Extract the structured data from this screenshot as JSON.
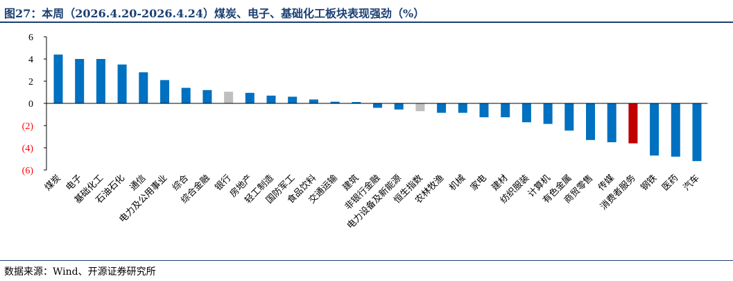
{
  "header": {
    "title": "图27：本周（2026.4.20-2026.4.24）煤炭、电子、基础化工板块表现强劲（%）"
  },
  "footer": {
    "source": "数据来源：Wind、开源证券研究所"
  },
  "colors": {
    "default_bar": "#0070C0",
    "index_bar": "#BFBFBF",
    "highlight_bar": "#C00000",
    "negative_tick": "#FF0000",
    "title": "#1B3F73"
  },
  "chart_data": {
    "type": "bar",
    "title": "",
    "xlabel": "",
    "ylabel": "",
    "ylim": [
      -6,
      6
    ],
    "yticks": [
      6,
      4,
      2,
      0,
      -2,
      -4,
      -6
    ],
    "ytick_labels": [
      "6",
      "4",
      "2",
      "0",
      "(2)",
      "(4)",
      "(6)"
    ],
    "grid": false,
    "categories": [
      "煤炭",
      "电子",
      "基础化工",
      "石油石化",
      "通信",
      "电力及公用事业",
      "综合",
      "综合金融",
      "银行",
      "房地产",
      "轻工制造",
      "国防军工",
      "食品饮料",
      "交通运输",
      "建筑",
      "非银行金融",
      "电力设备及新能源",
      "恒生指数",
      "农林牧渔",
      "机械",
      "家电",
      "建材",
      "纺织服装",
      "计算机",
      "有色金属",
      "商贸零售",
      "传媒",
      "消费者服务",
      "钢铁",
      "医药",
      "汽车"
    ],
    "values": [
      4.4,
      4.0,
      4.0,
      3.5,
      2.8,
      2.1,
      1.4,
      1.2,
      1.05,
      0.95,
      0.7,
      0.6,
      0.35,
      0.15,
      0.12,
      -0.4,
      -0.55,
      -0.7,
      -0.85,
      -0.85,
      -1.25,
      -1.25,
      -1.7,
      -1.85,
      -2.45,
      -3.3,
      -3.5,
      -3.6,
      -4.7,
      -4.8,
      -5.2
    ],
    "bar_colors": [
      "#0070C0",
      "#0070C0",
      "#0070C0",
      "#0070C0",
      "#0070C0",
      "#0070C0",
      "#0070C0",
      "#0070C0",
      "#BFBFBF",
      "#0070C0",
      "#0070C0",
      "#0070C0",
      "#0070C0",
      "#0070C0",
      "#0070C0",
      "#0070C0",
      "#0070C0",
      "#BFBFBF",
      "#0070C0",
      "#0070C0",
      "#0070C0",
      "#0070C0",
      "#0070C0",
      "#0070C0",
      "#0070C0",
      "#0070C0",
      "#0070C0",
      "#C00000",
      "#0070C0",
      "#0070C0",
      "#0070C0"
    ]
  }
}
